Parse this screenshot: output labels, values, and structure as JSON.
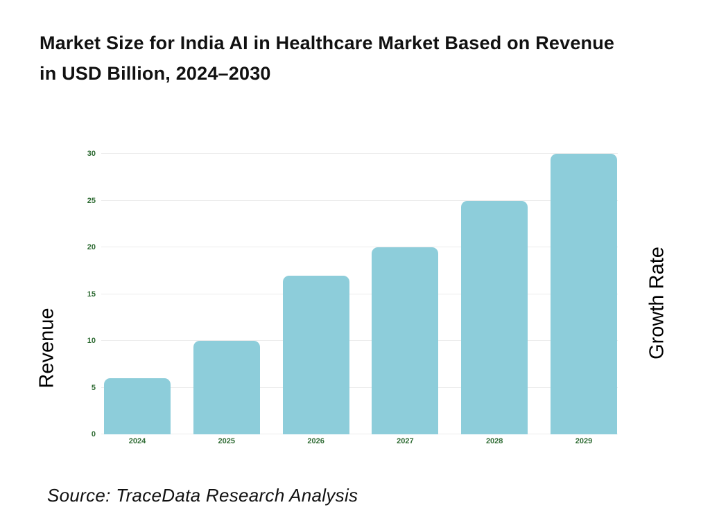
{
  "header": {
    "title_line1": "Market Size for India AI in Healthcare Market Based on Revenue",
    "title_line2": "in USD Billion, 2024–2030"
  },
  "axes": {
    "left_label": "Revenue",
    "right_label": "Growth Rate"
  },
  "footer": {
    "source": "Source: TraceData Research Analysis"
  },
  "chart_data": {
    "type": "bar",
    "title": "Market Size for India AI in Healthcare Market Based on Revenue in USD Billion, 2024–2030",
    "categories": [
      "2024",
      "2025",
      "2026",
      "2027",
      "2028",
      "2029"
    ],
    "values": [
      6,
      10,
      17,
      20,
      25,
      30
    ],
    "xlabel": "",
    "ylabel_left": "Revenue",
    "ylabel_right": "Growth Rate",
    "ylim": [
      0,
      30
    ],
    "yticks": [
      0,
      5,
      10,
      15,
      20,
      25,
      30
    ],
    "grid": true,
    "legend": "none",
    "colors": {
      "bar": "#8dcdda",
      "tick_label": "#2e6b33",
      "gridline": "#ececec",
      "title": "#111111"
    }
  }
}
